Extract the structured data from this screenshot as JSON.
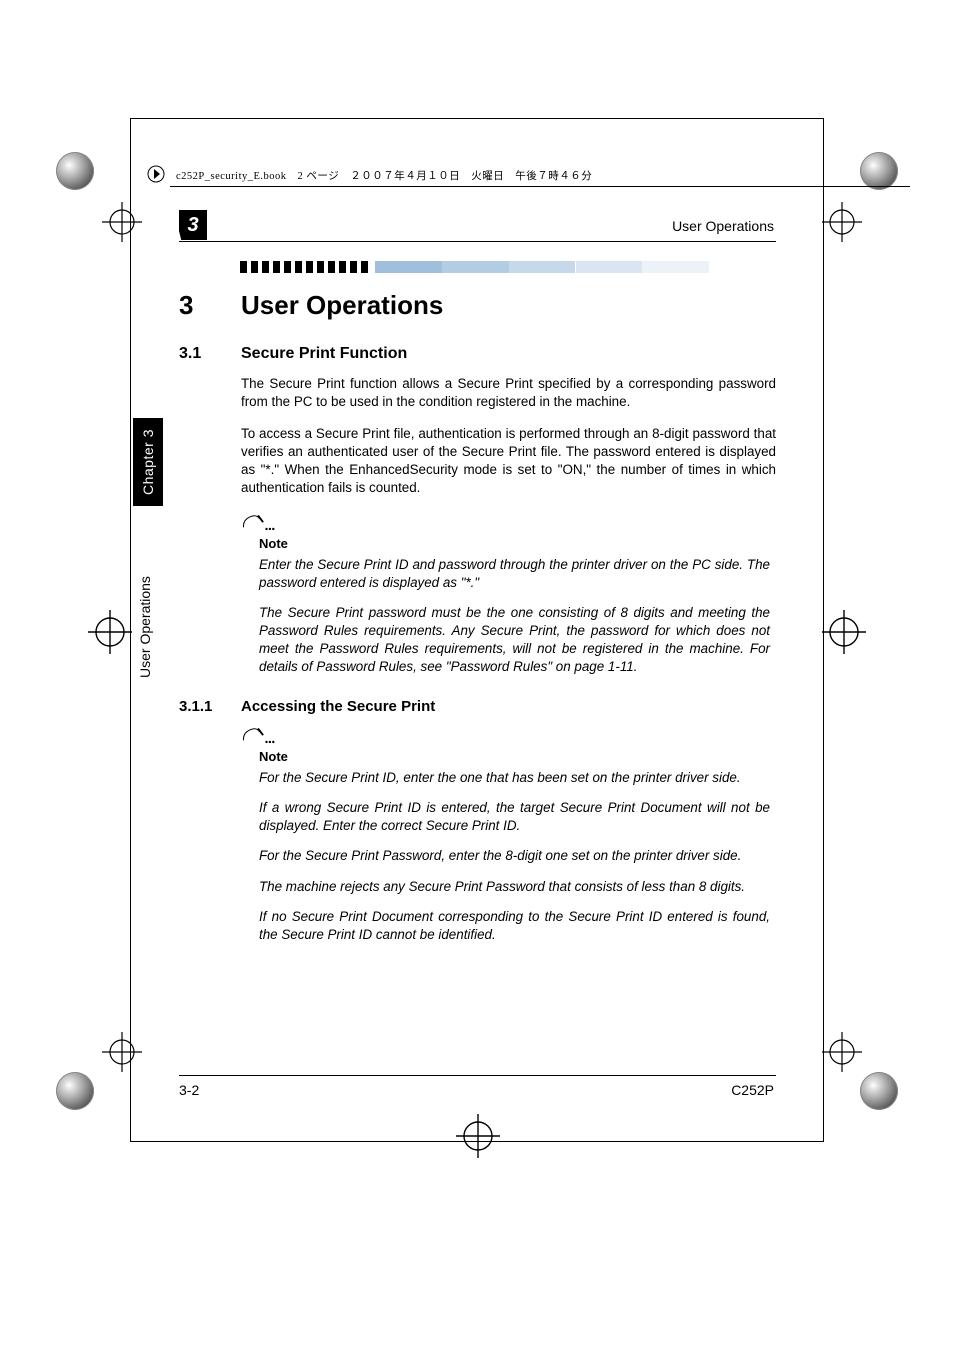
{
  "file_header": "c252P_security_E.book　2 ページ　２００７年４月１０日　火曜日　午後７時４６分",
  "running_head": "User Operations",
  "chapter_badge": "3",
  "side_tab": "Chapter 3",
  "side_label": "User Operations",
  "h1": {
    "num": "3",
    "title": "User Operations"
  },
  "h2": {
    "num": "3.1",
    "title": "Secure Print Function"
  },
  "h3": {
    "num": "3.1.1",
    "title": "Accessing the Secure Print"
  },
  "paras": {
    "p1": "The Secure Print function allows a Secure Print specified by a corresponding password from the PC to be used in the condition registered in the machine.",
    "p2": "To access a Secure Print file, authentication is performed through an 8-digit password that verifies an authenticated user of the Secure Print file. The password entered is displayed as \"*.\" When the EnhancedSecurity mode is set to \"ON,\" the number of times in which authentication fails is counted."
  },
  "note1": {
    "label": "Note",
    "n1": "Enter the Secure Print ID and password through the printer driver on the PC side. The password entered is displayed as \"*.\"",
    "n2": "The Secure Print password must be the one consisting of 8 digits and meeting the Password Rules requirements. Any Secure Print, the password for which does not meet the Password Rules requirements, will not be registered in the machine. For details of Password Rules, see \"Password Rules\" on page 1-11."
  },
  "note2": {
    "label": "Note",
    "n1": "For the Secure Print ID, enter the one that has been set on the printer driver side.",
    "n2": "If a wrong Secure Print ID is entered, the target Secure Print Document will not be displayed. Enter the correct Secure Print ID.",
    "n3": "For the Secure Print Password, enter the 8-digit one set on the printer driver side.",
    "n4": "The machine rejects any Secure Print Password that consists of less than 8 digits.",
    "n5": "If no Secure Print Document corresponding to the Secure Print ID entered is found, the Secure Print ID cannot be identified."
  },
  "footer": {
    "left": "3-2",
    "right": "C252P"
  },
  "colors": {
    "text": "#000000",
    "bg": "#ffffff",
    "tick_dark": "#000000",
    "tick_light": "#9fbfdc"
  },
  "tick_strip": {
    "dark_segments": 12,
    "dark_width": 7,
    "dark_gap": 11,
    "gradient_start": 135,
    "gradient_end": 536
  }
}
